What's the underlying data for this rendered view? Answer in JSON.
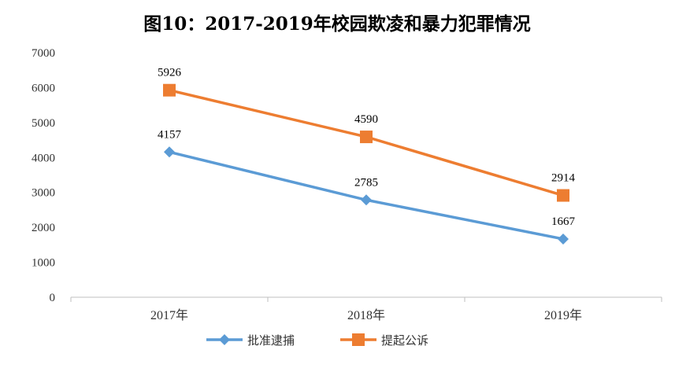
{
  "chart_data": {
    "type": "line",
    "title": "图10：2017-2019年校园欺凌和暴力犯罪情况",
    "categories": [
      "2017年",
      "2018年",
      "2019年"
    ],
    "ylim": [
      0,
      7000
    ],
    "yticks": [
      0,
      1000,
      2000,
      3000,
      4000,
      5000,
      6000,
      7000
    ],
    "grid": false,
    "legend_position": "bottom",
    "series": [
      {
        "name": "批准逮捕",
        "values": [
          4157,
          2785,
          1667
        ],
        "color": "#5B9BD5",
        "marker": "diamond"
      },
      {
        "name": "提起公诉",
        "values": [
          5926,
          4590,
          2914
        ],
        "color": "#ED7D31",
        "marker": "square"
      }
    ]
  }
}
